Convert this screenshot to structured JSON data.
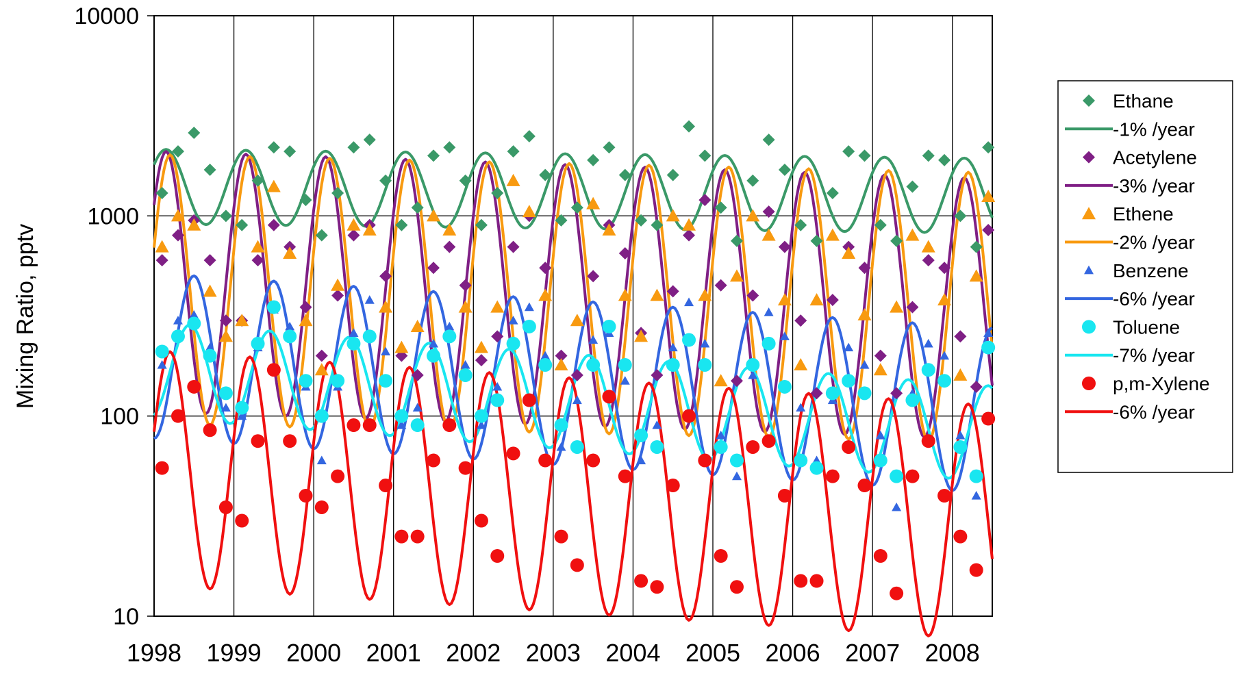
{
  "chart_data": {
    "type": "scatter",
    "title": "",
    "xlabel": "",
    "ylabel": "Mixing Ratio, pptv",
    "yscale": "log",
    "ylim": [
      10,
      10000
    ],
    "xlim": [
      1998.0,
      2008.5
    ],
    "y_ticks": [
      {
        "value": 10,
        "label": "10"
      },
      {
        "value": 100,
        "label": "100"
      },
      {
        "value": 1000,
        "label": "1000"
      },
      {
        "value": 10000,
        "label": "10000"
      }
    ],
    "x_ticks": [
      {
        "value": 1998,
        "label": "1998"
      },
      {
        "value": 1999,
        "label": "1999"
      },
      {
        "value": 2000,
        "label": "2000"
      },
      {
        "value": 2001,
        "label": "2001"
      },
      {
        "value": 2002,
        "label": "2002"
      },
      {
        "value": 2003,
        "label": "2003"
      },
      {
        "value": 2004,
        "label": "2004"
      },
      {
        "value": 2005,
        "label": "2005"
      },
      {
        "value": 2006,
        "label": "2006"
      },
      {
        "value": 2007,
        "label": "2007"
      },
      {
        "value": 2008,
        "label": "2008"
      }
    ],
    "grid": true,
    "legend_position": "right",
    "series": [
      {
        "name": "Ethane",
        "kind": "points",
        "marker": "diamond",
        "color": "#3a9968",
        "x": [
          1998.1,
          1998.3,
          1998.5,
          1998.7,
          1998.9,
          1999.1,
          1999.3,
          1999.5,
          1999.7,
          1999.9,
          2000.1,
          2000.3,
          2000.5,
          2000.7,
          2000.9,
          2001.1,
          2001.3,
          2001.5,
          2001.7,
          2001.9,
          2002.1,
          2002.3,
          2002.5,
          2002.7,
          2002.9,
          2003.1,
          2003.3,
          2003.5,
          2003.7,
          2003.9,
          2004.1,
          2004.3,
          2004.5,
          2004.7,
          2004.9,
          2005.1,
          2005.3,
          2005.5,
          2005.7,
          2005.9,
          2006.1,
          2006.3,
          2006.5,
          2006.7,
          2006.9,
          2007.1,
          2007.3,
          2007.5,
          2007.7,
          2007.9,
          2008.1,
          2008.3,
          2008.45
        ],
        "y": [
          1300,
          2100,
          2600,
          1700,
          1000,
          900,
          1500,
          2200,
          2100,
          1200,
          800,
          1300,
          2200,
          2400,
          1500,
          900,
          1100,
          2000,
          2200,
          1500,
          900,
          1300,
          2100,
          2500,
          1600,
          950,
          1100,
          1900,
          2200,
          1600,
          950,
          900,
          1600,
          2800,
          2000,
          1100,
          750,
          1500,
          2400,
          1700,
          900,
          750,
          1300,
          2100,
          2000,
          900,
          750,
          1400,
          2000,
          1900,
          1000,
          700,
          2200
        ]
      },
      {
        "name": "-1% /year",
        "kind": "fit",
        "color": "#3a9968",
        "width": 4,
        "mean": 1400,
        "amp": 0.43,
        "trend": -0.01,
        "peak": 0.15,
        "x_start": 1998.0,
        "x_end": 2008.5
      },
      {
        "name": "Acetylene",
        "kind": "points",
        "marker": "diamond",
        "color": "#7f1f85",
        "x": [
          1998.1,
          1998.3,
          1998.5,
          1998.7,
          1998.9,
          1999.1,
          1999.3,
          1999.5,
          1999.7,
          1999.9,
          2000.1,
          2000.3,
          2000.5,
          2000.7,
          2000.9,
          2001.1,
          2001.3,
          2001.5,
          2001.7,
          2001.9,
          2002.1,
          2002.3,
          2002.5,
          2002.7,
          2002.9,
          2003.1,
          2003.3,
          2003.5,
          2003.7,
          2003.9,
          2004.1,
          2004.3,
          2004.5,
          2004.7,
          2004.9,
          2005.1,
          2005.3,
          2005.5,
          2005.7,
          2005.9,
          2006.1,
          2006.3,
          2006.5,
          2006.7,
          2006.9,
          2007.1,
          2007.3,
          2007.5,
          2007.7,
          2007.9,
          2008.1,
          2008.3,
          2008.45
        ],
        "y": [
          600,
          800,
          950,
          600,
          300,
          300,
          600,
          900,
          700,
          350,
          200,
          400,
          800,
          900,
          500,
          200,
          160,
          550,
          700,
          450,
          190,
          250,
          700,
          1000,
          550,
          200,
          160,
          500,
          900,
          650,
          260,
          160,
          420,
          800,
          1200,
          450,
          150,
          400,
          1050,
          700,
          300,
          130,
          380,
          700,
          550,
          200,
          130,
          350,
          600,
          550,
          250,
          140,
          850
        ]
      },
      {
        "name": "-3% /year",
        "kind": "fit",
        "color": "#7f1f85",
        "width": 4,
        "mean": 470,
        "amp": 1.5,
        "trend": -0.03,
        "peak": 0.15,
        "x_start": 1998.0,
        "x_end": 2008.5
      },
      {
        "name": "Ethene",
        "kind": "points",
        "marker": "triangle",
        "color": "#f89a10",
        "x": [
          1998.1,
          1998.3,
          1998.5,
          1998.7,
          1998.9,
          1999.1,
          1999.3,
          1999.5,
          1999.7,
          1999.9,
          2000.1,
          2000.3,
          2000.5,
          2000.7,
          2000.9,
          2001.1,
          2001.3,
          2001.5,
          2001.7,
          2001.9,
          2002.1,
          2002.3,
          2002.5,
          2002.7,
          2002.9,
          2003.1,
          2003.3,
          2003.5,
          2003.7,
          2003.9,
          2004.1,
          2004.3,
          2004.5,
          2004.7,
          2004.9,
          2005.1,
          2005.3,
          2005.5,
          2005.7,
          2005.9,
          2006.1,
          2006.3,
          2006.5,
          2006.7,
          2006.9,
          2007.1,
          2007.3,
          2007.5,
          2007.7,
          2007.9,
          2008.1,
          2008.3,
          2008.45
        ],
        "y": [
          700,
          1000,
          900,
          420,
          250,
          300,
          700,
          1400,
          650,
          300,
          170,
          450,
          900,
          850,
          350,
          220,
          280,
          1000,
          850,
          350,
          220,
          350,
          1500,
          1050,
          400,
          180,
          300,
          1150,
          850,
          400,
          250,
          400,
          1000,
          900,
          400,
          150,
          500,
          1000,
          800,
          380,
          180,
          380,
          800,
          650,
          320,
          170,
          350,
          800,
          700,
          380,
          160,
          500,
          1250
        ]
      },
      {
        "name": "-2% /year",
        "kind": "fit",
        "color": "#f89a10",
        "width": 4,
        "mean": 430,
        "amp": 1.55,
        "trend": -0.02,
        "peak": 0.2,
        "x_start": 1998.0,
        "x_end": 2008.5
      },
      {
        "name": "Benzene",
        "kind": "points",
        "marker": "triangle",
        "color": "#3366e0",
        "x": [
          1998.1,
          1998.3,
          1998.5,
          1998.7,
          1998.9,
          1999.1,
          1999.3,
          1999.5,
          1999.7,
          1999.9,
          2000.1,
          2000.3,
          2000.5,
          2000.7,
          2000.9,
          2001.1,
          2001.3,
          2001.5,
          2001.7,
          2001.9,
          2002.1,
          2002.3,
          2002.5,
          2002.7,
          2002.9,
          2003.1,
          2003.3,
          2003.5,
          2003.7,
          2003.9,
          2004.1,
          2004.3,
          2004.5,
          2004.7,
          2004.9,
          2005.1,
          2005.3,
          2005.5,
          2005.7,
          2005.9,
          2006.1,
          2006.3,
          2006.5,
          2006.7,
          2006.9,
          2007.1,
          2007.3,
          2007.5,
          2007.7,
          2007.9,
          2008.1,
          2008.3,
          2008.45
        ],
        "y": [
          180,
          300,
          320,
          220,
          110,
          100,
          220,
          340,
          280,
          140,
          60,
          140,
          260,
          380,
          210,
          90,
          110,
          230,
          280,
          180,
          90,
          140,
          300,
          350,
          200,
          70,
          120,
          240,
          260,
          150,
          60,
          90,
          220,
          370,
          230,
          80,
          50,
          160,
          330,
          250,
          110,
          60,
          120,
          220,
          180,
          80,
          35,
          130,
          230,
          200,
          80,
          40,
          260
        ]
      },
      {
        "name": "-6% /year",
        "kind": "fit",
        "color": "#3366e0",
        "width": 4,
        "mean": 200,
        "amp": 0.95,
        "trend": -0.06,
        "peak": 0.5,
        "x_start": 1998.0,
        "x_end": 2008.5
      },
      {
        "name": "Toluene",
        "kind": "points",
        "marker": "circle",
        "color": "#19e6f0",
        "x": [
          1998.1,
          1998.3,
          1998.5,
          1998.7,
          1998.9,
          1999.1,
          1999.3,
          1999.5,
          1999.7,
          1999.9,
          2000.1,
          2000.3,
          2000.5,
          2000.7,
          2000.9,
          2001.1,
          2001.3,
          2001.5,
          2001.7,
          2001.9,
          2002.1,
          2002.3,
          2002.5,
          2002.7,
          2002.9,
          2003.1,
          2003.3,
          2003.5,
          2003.7,
          2003.9,
          2004.1,
          2004.3,
          2004.5,
          2004.7,
          2004.9,
          2005.1,
          2005.3,
          2005.5,
          2005.7,
          2005.9,
          2006.1,
          2006.3,
          2006.5,
          2006.7,
          2006.9,
          2007.1,
          2007.3,
          2007.5,
          2007.7,
          2007.9,
          2008.1,
          2008.3,
          2008.45
        ],
        "y": [
          210,
          250,
          290,
          200,
          130,
          110,
          230,
          350,
          250,
          150,
          100,
          150,
          230,
          250,
          150,
          100,
          90,
          200,
          250,
          160,
          100,
          120,
          230,
          280,
          180,
          90,
          70,
          180,
          280,
          180,
          80,
          70,
          180,
          240,
          180,
          70,
          60,
          180,
          230,
          140,
          60,
          55,
          130,
          150,
          130,
          60,
          50,
          120,
          170,
          150,
          70,
          50,
          220
        ]
      },
      {
        "name": "-7% /year",
        "kind": "fit",
        "color": "#19e6f0",
        "width": 4,
        "mean": 170,
        "amp": 0.55,
        "trend": -0.07,
        "peak": 0.45,
        "x_start": 1998.0,
        "x_end": 2008.5
      },
      {
        "name": "p,m-Xylene",
        "kind": "points",
        "marker": "circle",
        "color": "#f01010",
        "x": [
          1998.1,
          1998.3,
          1998.5,
          1998.7,
          1998.9,
          1999.1,
          1999.3,
          1999.5,
          1999.7,
          1999.9,
          2000.1,
          2000.3,
          2000.5,
          2000.7,
          2000.9,
          2001.1,
          2001.3,
          2001.5,
          2001.7,
          2001.9,
          2002.1,
          2002.3,
          2002.5,
          2002.7,
          2002.9,
          2003.1,
          2003.3,
          2003.5,
          2003.7,
          2003.9,
          2004.1,
          2004.3,
          2004.5,
          2004.7,
          2004.9,
          2005.1,
          2005.3,
          2005.5,
          2005.7,
          2005.9,
          2006.1,
          2006.3,
          2006.5,
          2006.7,
          2006.9,
          2007.1,
          2007.3,
          2007.5,
          2007.7,
          2007.9,
          2008.1,
          2008.3,
          2008.45
        ],
        "y": [
          55,
          100,
          140,
          85,
          35,
          30,
          75,
          170,
          75,
          40,
          35,
          50,
          90,
          90,
          45,
          25,
          25,
          60,
          90,
          55,
          30,
          20,
          65,
          120,
          60,
          25,
          18,
          60,
          125,
          50,
          15,
          14,
          45,
          100,
          60,
          20,
          14,
          70,
          75,
          40,
          15,
          15,
          50,
          70,
          45,
          20,
          13,
          50,
          75,
          40,
          25,
          17,
          97
        ]
      },
      {
        "name": "-6% /year",
        "kind": "fit",
        "color": "#f01010",
        "width": 4,
        "mean": 55,
        "amp": 1.35,
        "trend": -0.06,
        "peak": 0.2,
        "x_start": 1998.0,
        "x_end": 2008.5
      }
    ]
  }
}
